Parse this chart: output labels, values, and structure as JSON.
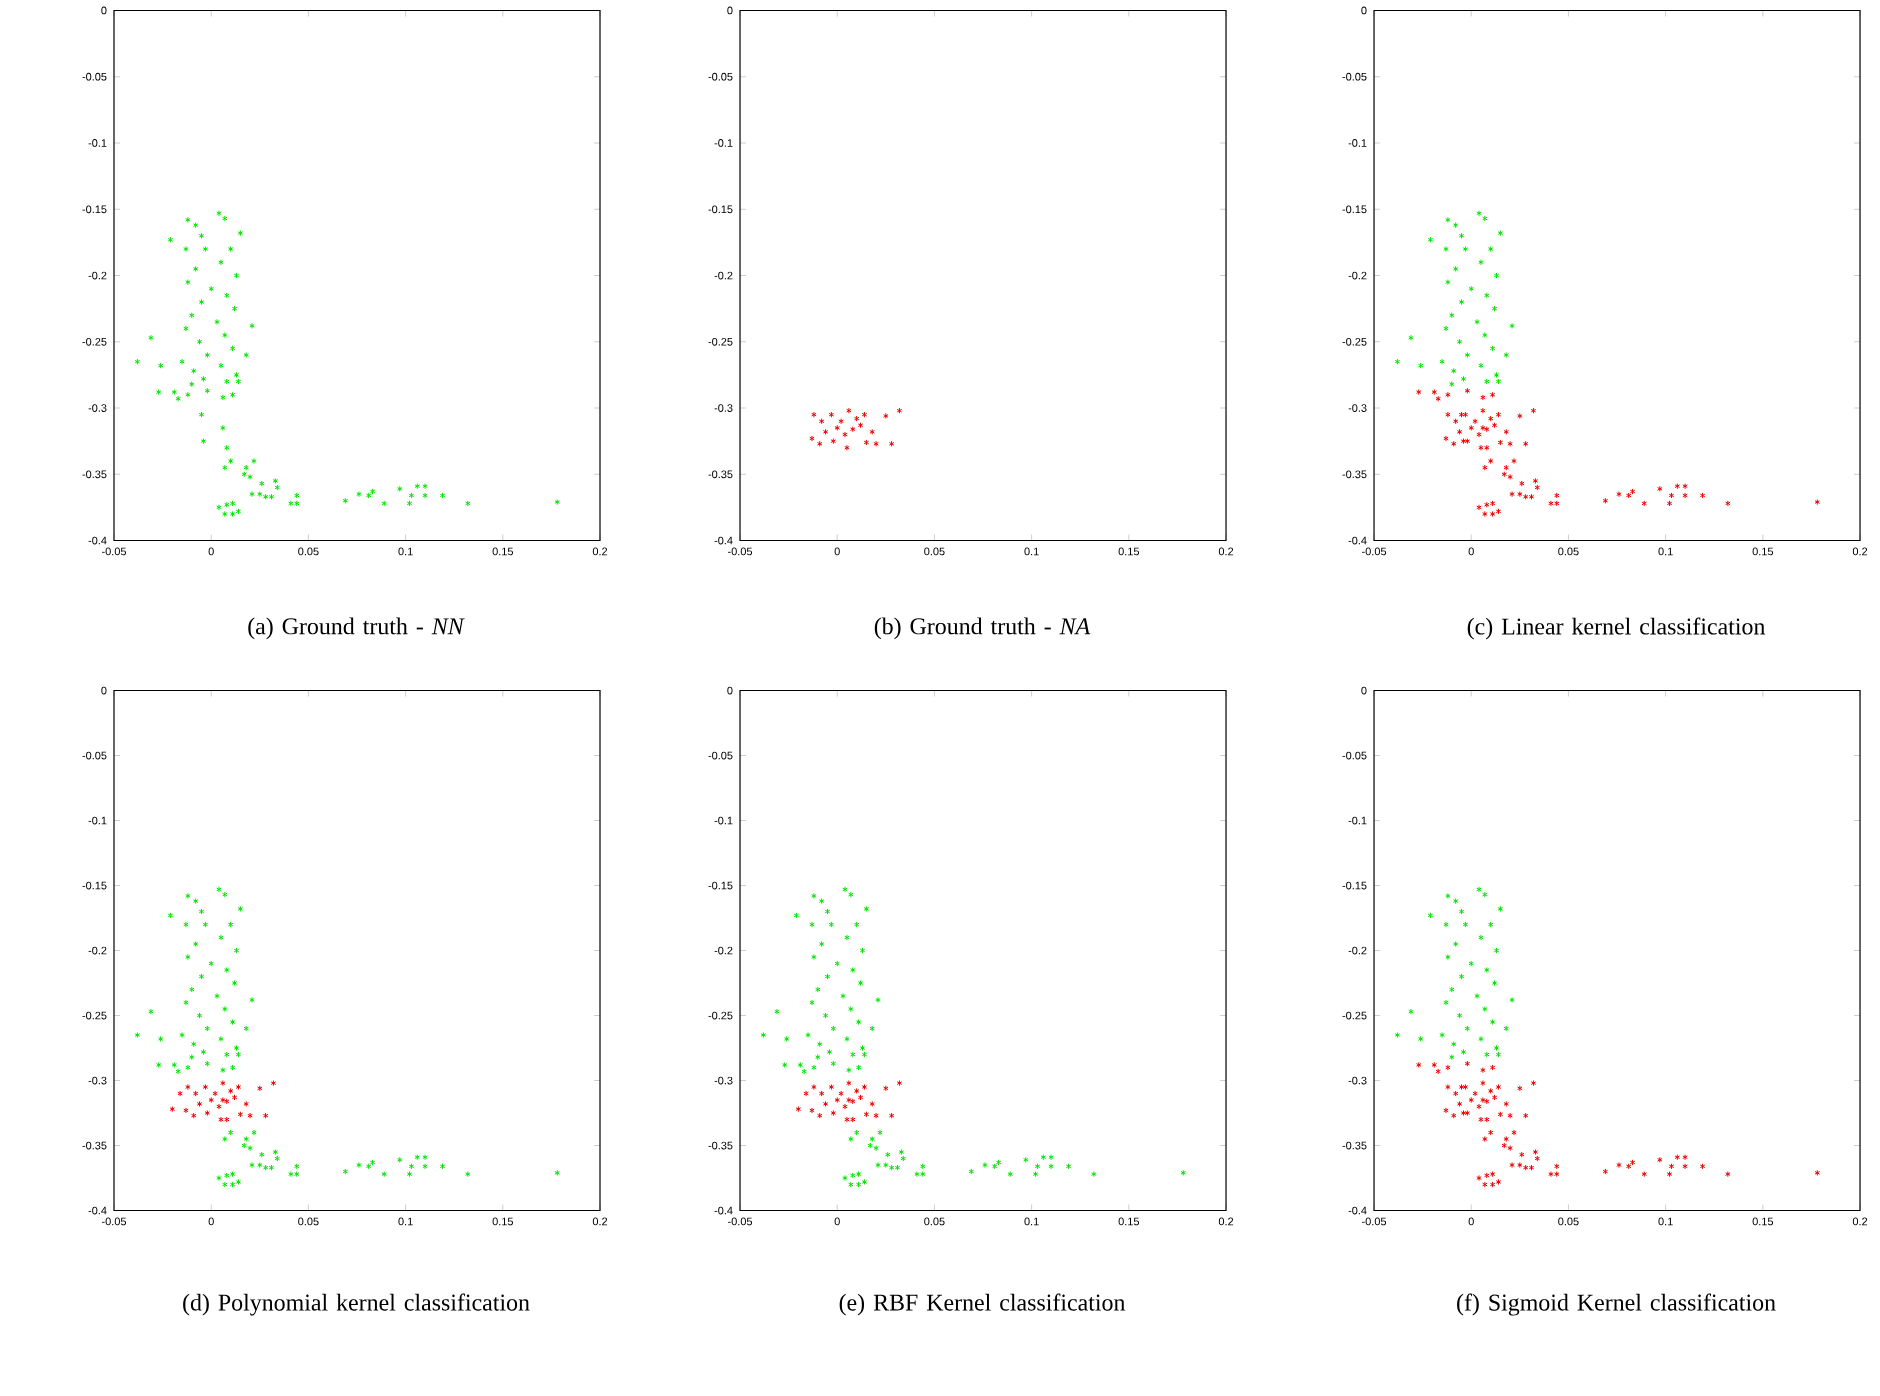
{
  "chart_data": [
    {
      "type": "scatter",
      "marker": "cross",
      "xlim": [
        -0.05,
        0.2
      ],
      "ylim": [
        -0.4,
        0
      ],
      "xticks": [
        -0.05,
        0,
        0.05,
        0.1,
        0.15,
        0.2
      ],
      "yticks": [
        -0.4,
        -0.35,
        -0.3,
        -0.25,
        -0.2,
        -0.15,
        -0.1,
        -0.05,
        0
      ],
      "annotations": [
        "(a) Ground truth - *NN*"
      ],
      "series": [
        {
          "color": "#00e600",
          "x": [
            -0.012,
            -0.008,
            -0.005,
            0.004,
            0.007,
            0.015,
            -0.021,
            -0.013,
            -0.003,
            0.01,
            0.005,
            -0.008,
            0.013,
            -0.012,
            0.0,
            0.008,
            -0.005,
            0.012,
            -0.01,
            0.003,
            -0.013,
            0.021,
            0.007,
            -0.006,
            0.011,
            -0.002,
            0.018,
            -0.031,
            -0.038,
            -0.026,
            -0.015,
            0.005,
            -0.009,
            0.013,
            -0.004,
            0.008,
            0.014,
            -0.01,
            -0.027,
            -0.019,
            -0.012,
            -0.002,
            0.006,
            0.011,
            -0.017,
            -0.005,
            -0.004,
            0.006,
            0.008,
            0.01,
            0.007,
            0.018,
            0.022,
            0.02,
            0.017,
            0.026,
            0.021,
            0.025,
            0.033,
            0.034,
            0.028,
            0.031,
            0.044,
            0.041,
            0.044,
            0.004,
            0.008,
            0.011,
            0.007,
            0.011,
            0.014,
            0.069,
            0.076,
            0.081,
            0.083,
            0.089,
            0.097,
            0.102,
            0.103,
            0.106,
            0.11,
            0.11,
            0.119,
            0.132,
            0.178
          ],
          "values": [
            -0.158,
            -0.162,
            -0.17,
            -0.153,
            -0.157,
            -0.168,
            -0.173,
            -0.18,
            -0.18,
            -0.18,
            -0.19,
            -0.195,
            -0.2,
            -0.205,
            -0.21,
            -0.215,
            -0.22,
            -0.225,
            -0.23,
            -0.235,
            -0.24,
            -0.238,
            -0.245,
            -0.25,
            -0.255,
            -0.26,
            -0.26,
            -0.247,
            -0.265,
            -0.268,
            -0.265,
            -0.268,
            -0.272,
            -0.275,
            -0.278,
            -0.28,
            -0.28,
            -0.282,
            -0.288,
            -0.288,
            -0.29,
            -0.287,
            -0.292,
            -0.29,
            -0.293,
            -0.305,
            -0.325,
            -0.315,
            -0.33,
            -0.34,
            -0.345,
            -0.345,
            -0.34,
            -0.352,
            -0.35,
            -0.357,
            -0.365,
            -0.365,
            -0.355,
            -0.36,
            -0.367,
            -0.367,
            -0.366,
            -0.372,
            -0.372,
            -0.375,
            -0.373,
            -0.372,
            -0.38,
            -0.38,
            -0.378,
            -0.37,
            -0.365,
            -0.366,
            -0.363,
            -0.372,
            -0.361,
            -0.372,
            -0.366,
            -0.359,
            -0.359,
            -0.366,
            -0.366,
            -0.372,
            -0.371
          ]
        }
      ]
    },
    {
      "type": "scatter",
      "marker": "cross",
      "xlim": [
        -0.05,
        0.2
      ],
      "ylim": [
        -0.4,
        0
      ],
      "xticks": [
        -0.05,
        0,
        0.05,
        0.1,
        0.15,
        0.2
      ],
      "yticks": [
        -0.4,
        -0.35,
        -0.3,
        -0.25,
        -0.2,
        -0.15,
        -0.1,
        -0.05,
        0
      ],
      "annotations": [
        "(b) Ground truth - *NA*"
      ],
      "series": [
        {
          "color": "#ee0000",
          "x": [
            -0.012,
            -0.008,
            -0.003,
            0.002,
            0.006,
            0.01,
            0.014,
            -0.013,
            -0.006,
            0.0,
            0.004,
            0.008,
            0.012,
            -0.002,
            0.005,
            0.018,
            0.02,
            0.025,
            0.028,
            0.032,
            0.015,
            -0.009
          ],
          "values": [
            -0.305,
            -0.31,
            -0.305,
            -0.31,
            -0.302,
            -0.308,
            -0.305,
            -0.323,
            -0.318,
            -0.315,
            -0.32,
            -0.316,
            -0.313,
            -0.325,
            -0.33,
            -0.318,
            -0.327,
            -0.306,
            -0.327,
            -0.302,
            -0.326,
            -0.327
          ]
        }
      ]
    },
    {
      "type": "scatter",
      "marker": "cross",
      "xlim": [
        -0.05,
        0.2
      ],
      "ylim": [
        -0.4,
        0
      ],
      "xticks": [
        -0.05,
        0,
        0.05,
        0.1,
        0.15,
        0.2
      ],
      "yticks": [
        -0.4,
        -0.35,
        -0.3,
        -0.25,
        -0.2,
        -0.15,
        -0.1,
        -0.05,
        0
      ],
      "annotations": [
        "(c) Linear kernel classification"
      ],
      "series": [
        {
          "color": "#00e600",
          "x": [
            -0.012,
            -0.008,
            -0.005,
            0.004,
            0.007,
            0.015,
            -0.021,
            -0.013,
            -0.003,
            0.01,
            0.005,
            -0.008,
            0.013,
            -0.012,
            0.0,
            0.008,
            -0.005,
            0.012,
            -0.01,
            0.003,
            -0.013,
            0.021,
            0.007,
            -0.006,
            0.011,
            -0.002,
            0.018,
            -0.031,
            -0.038,
            -0.026,
            -0.015,
            0.005,
            -0.009,
            0.013,
            -0.004,
            0.008,
            0.014,
            -0.01
          ],
          "values": [
            -0.158,
            -0.162,
            -0.17,
            -0.153,
            -0.157,
            -0.168,
            -0.173,
            -0.18,
            -0.18,
            -0.18,
            -0.19,
            -0.195,
            -0.2,
            -0.205,
            -0.21,
            -0.215,
            -0.22,
            -0.225,
            -0.23,
            -0.235,
            -0.24,
            -0.238,
            -0.245,
            -0.25,
            -0.255,
            -0.26,
            -0.26,
            -0.247,
            -0.265,
            -0.268,
            -0.265,
            -0.268,
            -0.272,
            -0.275,
            -0.278,
            -0.28,
            -0.28,
            -0.282
          ]
        },
        {
          "color": "#ee0000",
          "x": [
            -0.027,
            -0.019,
            -0.012,
            -0.002,
            0.006,
            0.011,
            -0.017,
            -0.012,
            -0.008,
            -0.003,
            0.002,
            0.006,
            0.01,
            0.014,
            -0.013,
            -0.006,
            0.0,
            0.004,
            0.008,
            0.012,
            -0.002,
            0.005,
            0.018,
            0.02,
            0.025,
            0.028,
            0.032,
            0.015,
            -0.009,
            -0.005,
            -0.004,
            0.006,
            0.008,
            0.01,
            0.007,
            0.018,
            0.022,
            0.02,
            0.017,
            0.026,
            0.021,
            0.025,
            0.033,
            0.034,
            0.028,
            0.031,
            0.044,
            0.041,
            0.044,
            0.004,
            0.008,
            0.011,
            0.007,
            0.011,
            0.014,
            0.069,
            0.076,
            0.081,
            0.083,
            0.089,
            0.097,
            0.102,
            0.103,
            0.106,
            0.11,
            0.11,
            0.119,
            0.132,
            0.178
          ],
          "values": [
            -0.288,
            -0.288,
            -0.29,
            -0.287,
            -0.292,
            -0.29,
            -0.293,
            -0.305,
            -0.31,
            -0.305,
            -0.31,
            -0.302,
            -0.308,
            -0.305,
            -0.323,
            -0.318,
            -0.315,
            -0.32,
            -0.316,
            -0.313,
            -0.325,
            -0.33,
            -0.318,
            -0.327,
            -0.306,
            -0.327,
            -0.302,
            -0.326,
            -0.327,
            -0.305,
            -0.325,
            -0.315,
            -0.33,
            -0.34,
            -0.345,
            -0.345,
            -0.34,
            -0.352,
            -0.35,
            -0.357,
            -0.365,
            -0.365,
            -0.355,
            -0.36,
            -0.367,
            -0.367,
            -0.366,
            -0.372,
            -0.372,
            -0.375,
            -0.373,
            -0.372,
            -0.38,
            -0.38,
            -0.378,
            -0.37,
            -0.365,
            -0.366,
            -0.363,
            -0.372,
            -0.361,
            -0.372,
            -0.366,
            -0.359,
            -0.359,
            -0.366,
            -0.366,
            -0.372,
            -0.371
          ]
        }
      ]
    },
    {
      "type": "scatter",
      "marker": "cross",
      "xlim": [
        -0.05,
        0.2
      ],
      "ylim": [
        -0.4,
        0
      ],
      "xticks": [
        -0.05,
        0,
        0.05,
        0.1,
        0.15,
        0.2
      ],
      "yticks": [
        -0.4,
        -0.35,
        -0.3,
        -0.25,
        -0.2,
        -0.15,
        -0.1,
        -0.05,
        0
      ],
      "annotations": [
        "(d) Polynomial kernel classification"
      ],
      "series": [
        {
          "color": "#00e600",
          "x": [
            -0.012,
            -0.008,
            -0.005,
            0.004,
            0.007,
            0.015,
            -0.021,
            -0.013,
            -0.003,
            0.01,
            0.005,
            -0.008,
            0.013,
            -0.012,
            0.0,
            0.008,
            -0.005,
            0.012,
            -0.01,
            0.003,
            -0.013,
            0.021,
            0.007,
            -0.006,
            0.011,
            -0.002,
            0.018,
            -0.031,
            -0.038,
            -0.026,
            -0.015,
            0.005,
            -0.009,
            0.013,
            -0.004,
            0.008,
            0.014,
            -0.01,
            -0.027,
            -0.019,
            -0.012,
            -0.002,
            0.006,
            0.011,
            -0.017,
            0.01,
            0.007,
            0.018,
            0.022,
            0.02,
            0.017,
            0.026,
            0.021,
            0.025,
            0.033,
            0.034,
            0.028,
            0.031,
            0.044,
            0.041,
            0.044,
            0.004,
            0.008,
            0.011,
            0.007,
            0.011,
            0.014,
            0.069,
            0.076,
            0.081,
            0.083,
            0.089,
            0.097,
            0.102,
            0.103,
            0.106,
            0.11,
            0.11,
            0.119,
            0.132,
            0.178
          ],
          "values": [
            -0.158,
            -0.162,
            -0.17,
            -0.153,
            -0.157,
            -0.168,
            -0.173,
            -0.18,
            -0.18,
            -0.18,
            -0.19,
            -0.195,
            -0.2,
            -0.205,
            -0.21,
            -0.215,
            -0.22,
            -0.225,
            -0.23,
            -0.235,
            -0.24,
            -0.238,
            -0.245,
            -0.25,
            -0.255,
            -0.26,
            -0.26,
            -0.247,
            -0.265,
            -0.268,
            -0.265,
            -0.268,
            -0.272,
            -0.275,
            -0.278,
            -0.28,
            -0.28,
            -0.282,
            -0.288,
            -0.288,
            -0.29,
            -0.287,
            -0.292,
            -0.29,
            -0.293,
            -0.34,
            -0.345,
            -0.345,
            -0.34,
            -0.352,
            -0.35,
            -0.357,
            -0.365,
            -0.365,
            -0.355,
            -0.36,
            -0.367,
            -0.367,
            -0.366,
            -0.372,
            -0.372,
            -0.375,
            -0.373,
            -0.372,
            -0.38,
            -0.38,
            -0.378,
            -0.37,
            -0.365,
            -0.366,
            -0.363,
            -0.372,
            -0.361,
            -0.372,
            -0.366,
            -0.359,
            -0.359,
            -0.366,
            -0.366,
            -0.372,
            -0.371
          ]
        },
        {
          "color": "#ee0000",
          "x": [
            -0.012,
            -0.008,
            -0.003,
            0.002,
            0.006,
            0.01,
            0.014,
            -0.013,
            -0.006,
            0.0,
            0.004,
            0.008,
            0.012,
            -0.002,
            0.005,
            0.018,
            0.02,
            0.025,
            0.028,
            0.032,
            0.015,
            -0.009,
            -0.016,
            -0.02,
            0.006,
            0.008
          ],
          "values": [
            -0.305,
            -0.31,
            -0.305,
            -0.31,
            -0.302,
            -0.308,
            -0.305,
            -0.323,
            -0.318,
            -0.315,
            -0.32,
            -0.316,
            -0.313,
            -0.325,
            -0.33,
            -0.318,
            -0.327,
            -0.306,
            -0.327,
            -0.302,
            -0.326,
            -0.327,
            -0.31,
            -0.322,
            -0.315,
            -0.33
          ]
        }
      ]
    },
    {
      "type": "scatter",
      "marker": "cross",
      "xlim": [
        -0.05,
        0.2
      ],
      "ylim": [
        -0.4,
        0
      ],
      "xticks": [
        -0.05,
        0,
        0.05,
        0.1,
        0.15,
        0.2
      ],
      "yticks": [
        -0.4,
        -0.35,
        -0.3,
        -0.25,
        -0.2,
        -0.15,
        -0.1,
        -0.05,
        0
      ],
      "annotations": [
        "(e) RBF Kernel classification"
      ],
      "series": [
        {
          "color": "#00e600",
          "x": [
            -0.012,
            -0.008,
            -0.005,
            0.004,
            0.007,
            0.015,
            -0.021,
            -0.013,
            -0.003,
            0.01,
            0.005,
            -0.008,
            0.013,
            -0.012,
            0.0,
            0.008,
            -0.005,
            0.012,
            -0.01,
            0.003,
            -0.013,
            0.021,
            0.007,
            -0.006,
            0.011,
            -0.002,
            0.018,
            -0.031,
            -0.038,
            -0.026,
            -0.015,
            0.005,
            -0.009,
            0.013,
            -0.004,
            0.008,
            0.014,
            -0.01,
            -0.027,
            -0.019,
            -0.012,
            -0.002,
            0.006,
            0.011,
            -0.017,
            0.01,
            0.007,
            0.018,
            0.022,
            0.02,
            0.017,
            0.026,
            0.021,
            0.025,
            0.033,
            0.034,
            0.028,
            0.031,
            0.044,
            0.041,
            0.044,
            0.004,
            0.008,
            0.011,
            0.007,
            0.011,
            0.014,
            0.069,
            0.076,
            0.081,
            0.083,
            0.089,
            0.097,
            0.102,
            0.103,
            0.106,
            0.11,
            0.11,
            0.119,
            0.132,
            0.178
          ],
          "values": [
            -0.158,
            -0.162,
            -0.17,
            -0.153,
            -0.157,
            -0.168,
            -0.173,
            -0.18,
            -0.18,
            -0.18,
            -0.19,
            -0.195,
            -0.2,
            -0.205,
            -0.21,
            -0.215,
            -0.22,
            -0.225,
            -0.23,
            -0.235,
            -0.24,
            -0.238,
            -0.245,
            -0.25,
            -0.255,
            -0.26,
            -0.26,
            -0.247,
            -0.265,
            -0.268,
            -0.265,
            -0.268,
            -0.272,
            -0.275,
            -0.278,
            -0.28,
            -0.28,
            -0.282,
            -0.288,
            -0.288,
            -0.29,
            -0.287,
            -0.292,
            -0.29,
            -0.293,
            -0.34,
            -0.345,
            -0.345,
            -0.34,
            -0.352,
            -0.35,
            -0.357,
            -0.365,
            -0.365,
            -0.355,
            -0.36,
            -0.367,
            -0.367,
            -0.366,
            -0.372,
            -0.372,
            -0.375,
            -0.373,
            -0.372,
            -0.38,
            -0.38,
            -0.378,
            -0.37,
            -0.365,
            -0.366,
            -0.363,
            -0.372,
            -0.361,
            -0.372,
            -0.366,
            -0.359,
            -0.359,
            -0.366,
            -0.366,
            -0.372,
            -0.371
          ]
        },
        {
          "color": "#ee0000",
          "x": [
            -0.012,
            -0.008,
            -0.003,
            0.002,
            0.006,
            0.01,
            0.014,
            -0.013,
            -0.006,
            0.0,
            0.004,
            0.008,
            0.012,
            -0.002,
            0.005,
            0.018,
            0.02,
            0.025,
            0.028,
            0.032,
            0.015,
            -0.009,
            -0.016,
            -0.02,
            0.006,
            0.008
          ],
          "values": [
            -0.305,
            -0.31,
            -0.305,
            -0.31,
            -0.302,
            -0.308,
            -0.305,
            -0.323,
            -0.318,
            -0.315,
            -0.32,
            -0.316,
            -0.313,
            -0.325,
            -0.33,
            -0.318,
            -0.327,
            -0.306,
            -0.327,
            -0.302,
            -0.326,
            -0.327,
            -0.31,
            -0.322,
            -0.315,
            -0.33
          ]
        }
      ]
    },
    {
      "type": "scatter",
      "marker": "cross",
      "xlim": [
        -0.05,
        0.2
      ],
      "ylim": [
        -0.4,
        0
      ],
      "xticks": [
        -0.05,
        0,
        0.05,
        0.1,
        0.15,
        0.2
      ],
      "yticks": [
        -0.4,
        -0.35,
        -0.3,
        -0.25,
        -0.2,
        -0.15,
        -0.1,
        -0.05,
        0
      ],
      "annotations": [
        "(f) Sigmoid Kernel classification"
      ],
      "series": [
        {
          "color": "#00e600",
          "x": [
            -0.012,
            -0.008,
            -0.005,
            0.004,
            0.007,
            0.015,
            -0.021,
            -0.013,
            -0.003,
            0.01,
            0.005,
            -0.008,
            0.013,
            -0.012,
            0.0,
            0.008,
            -0.005,
            0.012,
            -0.01,
            0.003,
            -0.013,
            0.021,
            0.007,
            -0.006,
            0.011,
            -0.002,
            0.018,
            -0.031,
            -0.038,
            -0.026,
            -0.015,
            0.005,
            -0.009,
            0.013,
            -0.004,
            0.008,
            0.014,
            -0.01
          ],
          "values": [
            -0.158,
            -0.162,
            -0.17,
            -0.153,
            -0.157,
            -0.168,
            -0.173,
            -0.18,
            -0.18,
            -0.18,
            -0.19,
            -0.195,
            -0.2,
            -0.205,
            -0.21,
            -0.215,
            -0.22,
            -0.225,
            -0.23,
            -0.235,
            -0.24,
            -0.238,
            -0.245,
            -0.25,
            -0.255,
            -0.26,
            -0.26,
            -0.247,
            -0.265,
            -0.268,
            -0.265,
            -0.268,
            -0.272,
            -0.275,
            -0.278,
            -0.28,
            -0.28,
            -0.282
          ]
        },
        {
          "color": "#ee0000",
          "x": [
            -0.027,
            -0.019,
            -0.012,
            -0.002,
            0.006,
            0.011,
            -0.017,
            -0.012,
            -0.008,
            -0.003,
            0.002,
            0.006,
            0.01,
            0.014,
            -0.013,
            -0.006,
            0.0,
            0.004,
            0.008,
            0.012,
            -0.002,
            0.005,
            0.018,
            0.02,
            0.025,
            0.028,
            0.032,
            0.015,
            -0.009,
            -0.005,
            -0.004,
            0.006,
            0.008,
            0.01,
            0.007,
            0.018,
            0.022,
            0.02,
            0.017,
            0.026,
            0.021,
            0.025,
            0.033,
            0.034,
            0.028,
            0.031,
            0.044,
            0.041,
            0.044,
            0.004,
            0.008,
            0.011,
            0.007,
            0.011,
            0.014,
            0.069,
            0.076,
            0.081,
            0.083,
            0.089,
            0.097,
            0.102,
            0.103,
            0.106,
            0.11,
            0.11,
            0.119,
            0.132,
            0.178
          ],
          "values": [
            -0.288,
            -0.288,
            -0.29,
            -0.287,
            -0.292,
            -0.29,
            -0.293,
            -0.305,
            -0.31,
            -0.305,
            -0.31,
            -0.302,
            -0.308,
            -0.305,
            -0.323,
            -0.318,
            -0.315,
            -0.32,
            -0.316,
            -0.313,
            -0.325,
            -0.33,
            -0.318,
            -0.327,
            -0.306,
            -0.327,
            -0.302,
            -0.326,
            -0.327,
            -0.305,
            -0.325,
            -0.315,
            -0.33,
            -0.34,
            -0.345,
            -0.345,
            -0.34,
            -0.352,
            -0.35,
            -0.357,
            -0.365,
            -0.365,
            -0.355,
            -0.36,
            -0.367,
            -0.367,
            -0.366,
            -0.372,
            -0.372,
            -0.375,
            -0.373,
            -0.372,
            -0.38,
            -0.38,
            -0.378,
            -0.37,
            -0.365,
            -0.366,
            -0.363,
            -0.372,
            -0.361,
            -0.372,
            -0.366,
            -0.359,
            -0.359,
            -0.366,
            -0.366,
            -0.372,
            -0.371
          ]
        }
      ]
    }
  ]
}
